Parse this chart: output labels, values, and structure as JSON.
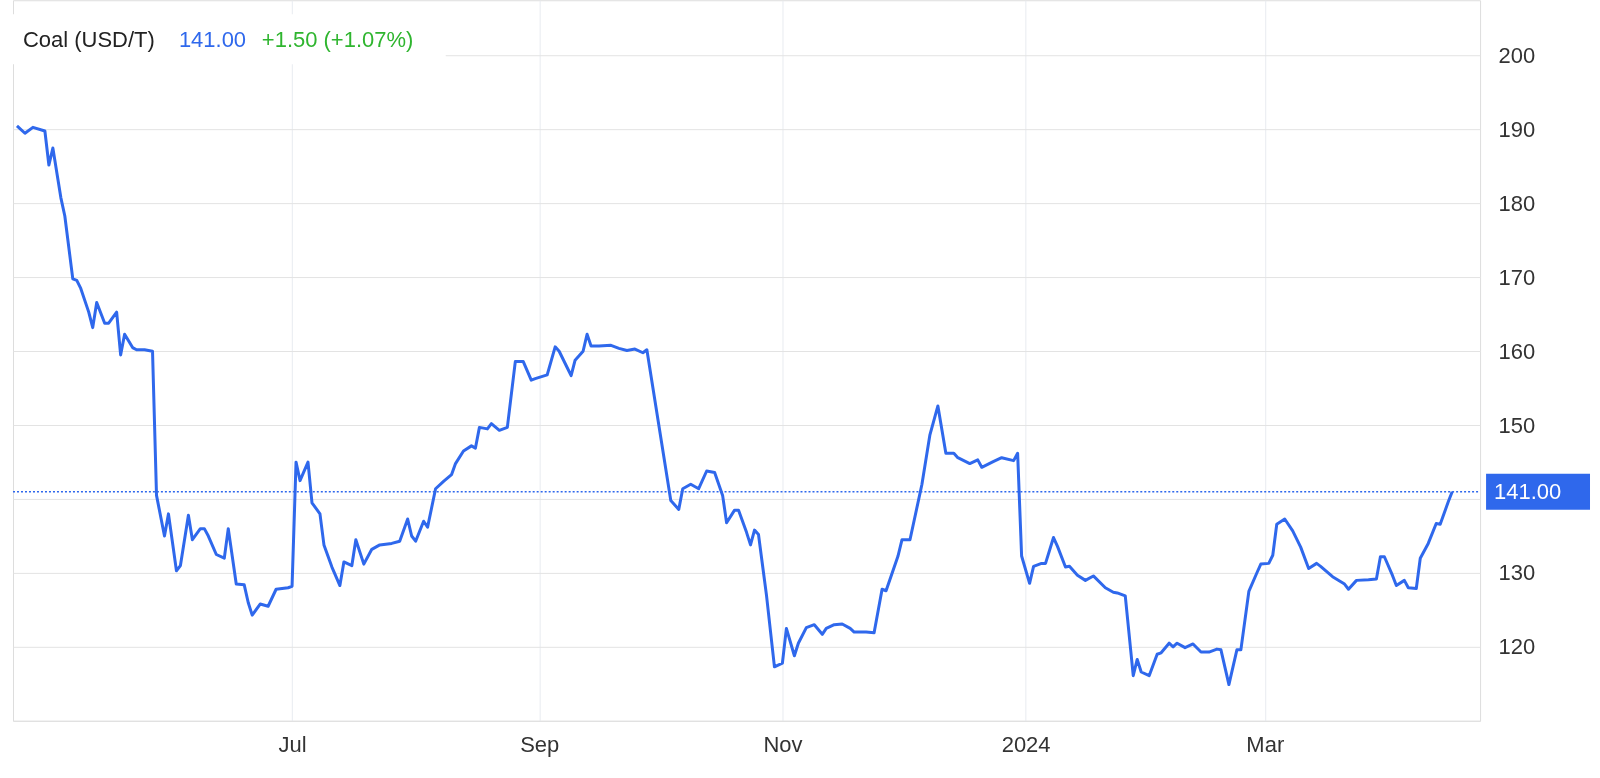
{
  "chart_data": {
    "type": "line",
    "title": "Coal (USD/T)",
    "annotations": [
      "141.00",
      "+1.50 (+1.07%)"
    ],
    "x": [
      "2023-04-23",
      "2023-04-25",
      "2023-04-27",
      "2023-04-30",
      "2023-05-01",
      "2023-05-02",
      "2023-05-04",
      "2023-05-05",
      "2023-05-07",
      "2023-05-08",
      "2023-05-09",
      "2023-05-11",
      "2023-05-12",
      "2023-05-13",
      "2023-05-15",
      "2023-05-16",
      "2023-05-18",
      "2023-05-19",
      "2023-05-20",
      "2023-05-22",
      "2023-05-23",
      "2023-05-25",
      "2023-05-27",
      "2023-05-28",
      "2023-05-30",
      "2023-05-31",
      "2023-06-02",
      "2023-06-03",
      "2023-06-05",
      "2023-06-06",
      "2023-06-08",
      "2023-06-09",
      "2023-06-10",
      "2023-06-12",
      "2023-06-14",
      "2023-06-15",
      "2023-06-17",
      "2023-06-19",
      "2023-06-20",
      "2023-06-21",
      "2023-06-23",
      "2023-06-25",
      "2023-06-27",
      "2023-06-30",
      "2023-07-01",
      "2023-07-02",
      "2023-07-03",
      "2023-07-05",
      "2023-07-06",
      "2023-07-08",
      "2023-07-09",
      "2023-07-11",
      "2023-07-13",
      "2023-07-14",
      "2023-07-16",
      "2023-07-17",
      "2023-07-19",
      "2023-07-21",
      "2023-07-23",
      "2023-07-26",
      "2023-07-28",
      "2023-07-30",
      "2023-07-31",
      "2023-08-01",
      "2023-08-03",
      "2023-08-04",
      "2023-08-06",
      "2023-08-08",
      "2023-08-10",
      "2023-08-11",
      "2023-08-13",
      "2023-08-15",
      "2023-08-16",
      "2023-08-17",
      "2023-08-19",
      "2023-08-20",
      "2023-08-22",
      "2023-08-24",
      "2023-08-26",
      "2023-08-28",
      "2023-08-30",
      "2023-08-31",
      "2023-09-03",
      "2023-09-05",
      "2023-09-06",
      "2023-09-08",
      "2023-09-09",
      "2023-09-10",
      "2023-09-12",
      "2023-09-13",
      "2023-09-14",
      "2023-09-16",
      "2023-09-19",
      "2023-09-21",
      "2023-09-23",
      "2023-09-25",
      "2023-09-27",
      "2023-09-28",
      "2023-10-04",
      "2023-10-06",
      "2023-10-07",
      "2023-10-09",
      "2023-10-11",
      "2023-10-13",
      "2023-10-15",
      "2023-10-17",
      "2023-10-18",
      "2023-10-20",
      "2023-10-21",
      "2023-10-23",
      "2023-10-24",
      "2023-10-25",
      "2023-10-26",
      "2023-10-28",
      "2023-10-30",
      "2023-11-01",
      "2023-11-02",
      "2023-11-04",
      "2023-11-05",
      "2023-11-07",
      "2023-11-09",
      "2023-11-11",
      "2023-11-12",
      "2023-11-14",
      "2023-11-16",
      "2023-11-18",
      "2023-11-19",
      "2023-11-22",
      "2023-11-24",
      "2023-11-26",
      "2023-11-27",
      "2023-11-30",
      "2023-12-01",
      "2023-12-03",
      "2023-12-06",
      "2023-12-08",
      "2023-12-10",
      "2023-12-12",
      "2023-12-14",
      "2023-12-15",
      "2023-12-18",
      "2023-12-20",
      "2023-12-21",
      "2023-12-24",
      "2023-12-26",
      "2023-12-29",
      "2023-12-30",
      "2023-12-31",
      "2024-01-02",
      "2024-01-03",
      "2024-01-05",
      "2024-01-06",
      "2024-01-08",
      "2024-01-09",
      "2024-01-11",
      "2024-01-12",
      "2024-01-14",
      "2024-01-16",
      "2024-01-18",
      "2024-01-21",
      "2024-01-23",
      "2024-01-24",
      "2024-01-25",
      "2024-01-26",
      "2024-01-28",
      "2024-01-29",
      "2024-01-30",
      "2024-02-01",
      "2024-02-03",
      "2024-02-04",
      "2024-02-06",
      "2024-02-07",
      "2024-02-08",
      "2024-02-10",
      "2024-02-12",
      "2024-02-14",
      "2024-02-16",
      "2024-02-18",
      "2024-02-19",
      "2024-02-21",
      "2024-02-23",
      "2024-02-24",
      "2024-02-26",
      "2024-02-28",
      "2024-02-29",
      "2024-03-02",
      "2024-03-03",
      "2024-03-04",
      "2024-03-06",
      "2024-03-08",
      "2024-03-10",
      "2024-03-12",
      "2024-03-14",
      "2024-03-15",
      "2024-03-18",
      "2024-03-21",
      "2024-03-22",
      "2024-03-24",
      "2024-03-27",
      "2024-03-29",
      "2024-03-30",
      "2024-03-31",
      "2024-04-02",
      "2024-04-03",
      "2024-04-05",
      "2024-04-06",
      "2024-04-08",
      "2024-04-09",
      "2024-04-11",
      "2024-04-13",
      "2024-04-14",
      "2024-04-16",
      "2024-04-17"
    ],
    "series": [
      {
        "color": "#2f68ec",
        "values": [
          190.5,
          189.5,
          190.3,
          189.8,
          185.2,
          187.5,
          180.8,
          178.3,
          169.8,
          169.6,
          168.5,
          165.3,
          163.2,
          166.6,
          163.8,
          163.8,
          165.3,
          159.5,
          162.3,
          160.5,
          160.2,
          160.2,
          160.0,
          140.5,
          135.0,
          138.0,
          130.3,
          131.0,
          137.8,
          134.5,
          136.0,
          136.0,
          135.0,
          132.5,
          132.0,
          136.0,
          128.5,
          128.4,
          126.0,
          124.3,
          125.8,
          125.5,
          127.8,
          128.0,
          128.2,
          145.0,
          142.5,
          145.0,
          139.5,
          138.0,
          133.8,
          130.8,
          128.3,
          131.5,
          131.0,
          134.5,
          131.2,
          133.2,
          133.8,
          134.0,
          134.3,
          137.3,
          135.0,
          134.3,
          137.0,
          136.2,
          141.4,
          142.4,
          143.3,
          144.8,
          146.5,
          147.2,
          146.9,
          149.7,
          149.5,
          150.2,
          149.3,
          149.7,
          158.6,
          158.6,
          156.1,
          156.3,
          156.8,
          160.6,
          160.0,
          157.8,
          156.7,
          158.8,
          160.0,
          162.3,
          160.7,
          160.7,
          160.8,
          160.4,
          160.1,
          160.3,
          159.8,
          160.2,
          139.8,
          138.6,
          141.4,
          142.0,
          141.4,
          143.8,
          143.6,
          140.5,
          136.8,
          138.5,
          138.5,
          135.5,
          133.8,
          135.8,
          135.2,
          127.0,
          117.3,
          117.8,
          122.5,
          118.8,
          120.5,
          122.6,
          123.0,
          121.7,
          122.5,
          123.0,
          123.1,
          122.5,
          122.0,
          122.0,
          121.9,
          127.8,
          127.6,
          132.3,
          134.5,
          134.5,
          142.0,
          148.7,
          152.6,
          146.2,
          146.2,
          145.6,
          144.8,
          145.3,
          144.3,
          145.1,
          145.6,
          145.2,
          146.2,
          132.3,
          128.6,
          130.9,
          131.3,
          131.3,
          134.8,
          133.6,
          130.8,
          130.9,
          129.7,
          129.0,
          129.6,
          128.0,
          127.4,
          127.3,
          127.1,
          126.9,
          116.1,
          118.3,
          116.6,
          116.1,
          119.0,
          119.2,
          120.5,
          120.0,
          120.5,
          119.9,
          120.4,
          119.3,
          119.3,
          119.7,
          119.6,
          114.9,
          119.6,
          119.6,
          127.5,
          130.0,
          131.2,
          131.3,
          132.4,
          136.6,
          137.3,
          135.7,
          133.5,
          130.6,
          131.3,
          130.9,
          129.5,
          128.5,
          127.8,
          129.0,
          129.1,
          129.2,
          132.2,
          132.2,
          129.7,
          128.3,
          129.0,
          128.0,
          127.9,
          132.0,
          134.0,
          136.7,
          136.6,
          139.6,
          141.0
        ]
      }
    ],
    "xlim": [
      "2023-04-22",
      "2024-04-24"
    ],
    "xticks": [
      {
        "value": "2023-07-01",
        "label": "Jul"
      },
      {
        "value": "2023-09-01",
        "label": "Sep"
      },
      {
        "value": "2023-11-01",
        "label": "Nov"
      },
      {
        "value": "2024-01-01",
        "label": "2024"
      },
      {
        "value": "2024-03-01",
        "label": "Mar"
      }
    ],
    "ylim": [
      110,
      207.5
    ],
    "yticks": [
      120,
      130,
      {
        "value": 140,
        "label": null
      },
      150,
      160,
      170,
      180,
      190,
      200
    ],
    "ref_lines": [
      {
        "axis": "y",
        "value": 141,
        "label": "141.00",
        "color": "#2f68ec",
        "line_style": "dotted"
      }
    ],
    "grid": true,
    "line_style": "solid",
    "marker": "none"
  }
}
